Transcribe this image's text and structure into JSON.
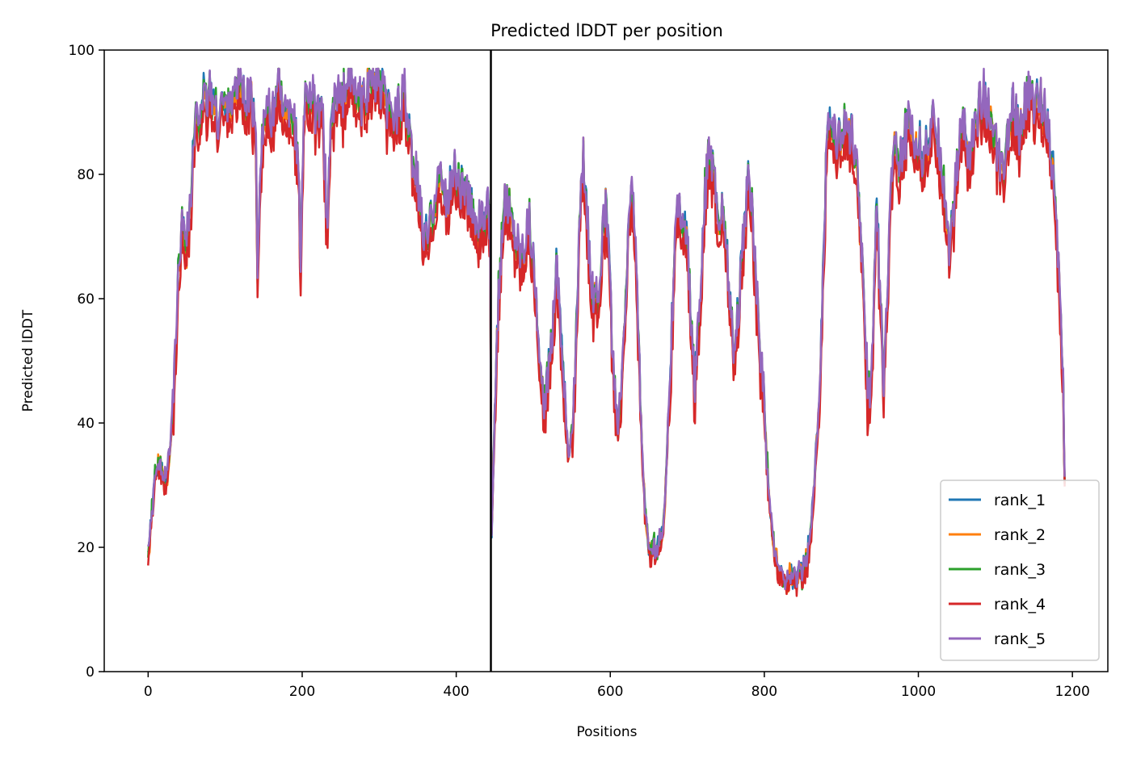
{
  "chart_data": {
    "type": "line",
    "title": "Predicted lDDT per position",
    "xlabel": "Positions",
    "ylabel": "Predicted lDDT",
    "xlim": [
      -57,
      1246
    ],
    "ylim": [
      0,
      100
    ],
    "xticks": [
      0,
      200,
      400,
      600,
      800,
      1000,
      1200
    ],
    "yticks": [
      0,
      20,
      40,
      60,
      80,
      100
    ],
    "vline_x": 445,
    "legend_position": "lower right",
    "grid": false,
    "anchors": [
      [
        0,
        19
      ],
      [
        5,
        26
      ],
      [
        10,
        32
      ],
      [
        15,
        33
      ],
      [
        20,
        30
      ],
      [
        25,
        31
      ],
      [
        30,
        38
      ],
      [
        35,
        48
      ],
      [
        40,
        66
      ],
      [
        45,
        72
      ],
      [
        50,
        70
      ],
      [
        55,
        74
      ],
      [
        60,
        86
      ],
      [
        65,
        88
      ],
      [
        70,
        92
      ],
      [
        75,
        90
      ],
      [
        80,
        93
      ],
      [
        85,
        91
      ],
      [
        90,
        88
      ],
      [
        95,
        92
      ],
      [
        100,
        90
      ],
      [
        105,
        92
      ],
      [
        110,
        91
      ],
      [
        115,
        93
      ],
      [
        120,
        94
      ],
      [
        125,
        92
      ],
      [
        130,
        93
      ],
      [
        135,
        90
      ],
      [
        140,
        84
      ],
      [
        142,
        64
      ],
      [
        145,
        80
      ],
      [
        150,
        88
      ],
      [
        155,
        90
      ],
      [
        160,
        86
      ],
      [
        165,
        92
      ],
      [
        170,
        94
      ],
      [
        175,
        91
      ],
      [
        180,
        88
      ],
      [
        185,
        91
      ],
      [
        190,
        87
      ],
      [
        195,
        80
      ],
      [
        198,
        65
      ],
      [
        202,
        90
      ],
      [
        207,
        93
      ],
      [
        212,
        92
      ],
      [
        217,
        89
      ],
      [
        222,
        87
      ],
      [
        227,
        90
      ],
      [
        232,
        70
      ],
      [
        237,
        87
      ],
      [
        242,
        90
      ],
      [
        247,
        92
      ],
      [
        252,
        91
      ],
      [
        257,
        94
      ],
      [
        262,
        95
      ],
      [
        267,
        93
      ],
      [
        272,
        91
      ],
      [
        277,
        90
      ],
      [
        282,
        92
      ],
      [
        287,
        94
      ],
      [
        292,
        95
      ],
      [
        297,
        94
      ],
      [
        302,
        93
      ],
      [
        307,
        91
      ],
      [
        312,
        89
      ],
      [
        317,
        88
      ],
      [
        322,
        90
      ],
      [
        327,
        91
      ],
      [
        332,
        92
      ],
      [
        337,
        87
      ],
      [
        342,
        83
      ],
      [
        347,
        80
      ],
      [
        352,
        75
      ],
      [
        357,
        70
      ],
      [
        362,
        68
      ],
      [
        367,
        72
      ],
      [
        372,
        76
      ],
      [
        377,
        79
      ],
      [
        382,
        78
      ],
      [
        387,
        74
      ],
      [
        392,
        77
      ],
      [
        397,
        80
      ],
      [
        402,
        79
      ],
      [
        407,
        78
      ],
      [
        412,
        76
      ],
      [
        417,
        74
      ],
      [
        422,
        73
      ],
      [
        427,
        72
      ],
      [
        432,
        71
      ],
      [
        437,
        72
      ],
      [
        441,
        73
      ],
      [
        444,
        70
      ],
      [
        446,
        22
      ],
      [
        450,
        40
      ],
      [
        455,
        60
      ],
      [
        460,
        72
      ],
      [
        465,
        76
      ],
      [
        470,
        74
      ],
      [
        475,
        70
      ],
      [
        480,
        68
      ],
      [
        485,
        67
      ],
      [
        490,
        70
      ],
      [
        495,
        72
      ],
      [
        500,
        66
      ],
      [
        505,
        55
      ],
      [
        510,
        45
      ],
      [
        515,
        42
      ],
      [
        520,
        48
      ],
      [
        525,
        55
      ],
      [
        530,
        65
      ],
      [
        535,
        58
      ],
      [
        540,
        45
      ],
      [
        545,
        35
      ],
      [
        550,
        38
      ],
      [
        555,
        50
      ],
      [
        560,
        70
      ],
      [
        565,
        83
      ],
      [
        570,
        72
      ],
      [
        575,
        62
      ],
      [
        580,
        58
      ],
      [
        585,
        60
      ],
      [
        590,
        70
      ],
      [
        595,
        74
      ],
      [
        600,
        60
      ],
      [
        605,
        45
      ],
      [
        610,
        38
      ],
      [
        615,
        45
      ],
      [
        620,
        60
      ],
      [
        625,
        74
      ],
      [
        630,
        76
      ],
      [
        635,
        60
      ],
      [
        640,
        40
      ],
      [
        645,
        25
      ],
      [
        650,
        20
      ],
      [
        655,
        19
      ],
      [
        660,
        20
      ],
      [
        665,
        21
      ],
      [
        670,
        25
      ],
      [
        675,
        40
      ],
      [
        680,
        55
      ],
      [
        685,
        70
      ],
      [
        690,
        75
      ],
      [
        695,
        72
      ],
      [
        700,
        68
      ],
      [
        705,
        55
      ],
      [
        710,
        45
      ],
      [
        715,
        55
      ],
      [
        720,
        70
      ],
      [
        725,
        80
      ],
      [
        730,
        82
      ],
      [
        735,
        78
      ],
      [
        740,
        72
      ],
      [
        745,
        74
      ],
      [
        750,
        70
      ],
      [
        755,
        60
      ],
      [
        760,
        50
      ],
      [
        765,
        55
      ],
      [
        770,
        65
      ],
      [
        775,
        72
      ],
      [
        780,
        80
      ],
      [
        785,
        72
      ],
      [
        790,
        60
      ],
      [
        795,
        50
      ],
      [
        800,
        42
      ],
      [
        805,
        30
      ],
      [
        810,
        22
      ],
      [
        815,
        18
      ],
      [
        820,
        16
      ],
      [
        825,
        15
      ],
      [
        830,
        15
      ],
      [
        835,
        15
      ],
      [
        840,
        15
      ],
      [
        845,
        15
      ],
      [
        850,
        16
      ],
      [
        855,
        18
      ],
      [
        860,
        22
      ],
      [
        865,
        30
      ],
      [
        870,
        40
      ],
      [
        875,
        60
      ],
      [
        880,
        80
      ],
      [
        885,
        88
      ],
      [
        890,
        87
      ],
      [
        895,
        85
      ],
      [
        900,
        86
      ],
      [
        905,
        88
      ],
      [
        910,
        87
      ],
      [
        915,
        84
      ],
      [
        920,
        80
      ],
      [
        925,
        72
      ],
      [
        930,
        55
      ],
      [
        935,
        42
      ],
      [
        940,
        50
      ],
      [
        945,
        75
      ],
      [
        950,
        62
      ],
      [
        955,
        45
      ],
      [
        960,
        60
      ],
      [
        965,
        80
      ],
      [
        970,
        85
      ],
      [
        975,
        82
      ],
      [
        980,
        84
      ],
      [
        985,
        86
      ],
      [
        990,
        88
      ],
      [
        995,
        85
      ],
      [
        1000,
        84
      ],
      [
        1005,
        82
      ],
      [
        1010,
        84
      ],
      [
        1015,
        86
      ],
      [
        1020,
        88
      ],
      [
        1025,
        85
      ],
      [
        1030,
        82
      ],
      [
        1035,
        75
      ],
      [
        1040,
        68
      ],
      [
        1045,
        72
      ],
      [
        1050,
        80
      ],
      [
        1055,
        86
      ],
      [
        1060,
        88
      ],
      [
        1065,
        82
      ],
      [
        1070,
        84
      ],
      [
        1075,
        88
      ],
      [
        1080,
        90
      ],
      [
        1085,
        92
      ],
      [
        1090,
        90
      ],
      [
        1095,
        86
      ],
      [
        1100,
        84
      ],
      [
        1105,
        82
      ],
      [
        1110,
        78
      ],
      [
        1115,
        85
      ],
      [
        1120,
        88
      ],
      [
        1125,
        90
      ],
      [
        1130,
        86
      ],
      [
        1135,
        88
      ],
      [
        1140,
        91
      ],
      [
        1145,
        92
      ],
      [
        1150,
        90
      ],
      [
        1155,
        92
      ],
      [
        1160,
        91
      ],
      [
        1165,
        90
      ],
      [
        1170,
        86
      ],
      [
        1175,
        80
      ],
      [
        1180,
        68
      ],
      [
        1185,
        58
      ],
      [
        1188,
        45
      ],
      [
        1190,
        30
      ]
    ],
    "series": [
      {
        "name": "rank_1",
        "color": "#1f77b4",
        "seed": 1,
        "offset": 0.6
      },
      {
        "name": "rank_2",
        "color": "#ff7f0e",
        "seed": 2,
        "offset": -0.2
      },
      {
        "name": "rank_3",
        "color": "#2ca02c",
        "seed": 3,
        "offset": 0.4
      },
      {
        "name": "rank_4",
        "color": "#d62728",
        "seed": 4,
        "offset": -2.5
      },
      {
        "name": "rank_5",
        "color": "#9467bd",
        "seed": 5,
        "offset": 1.0
      }
    ]
  }
}
